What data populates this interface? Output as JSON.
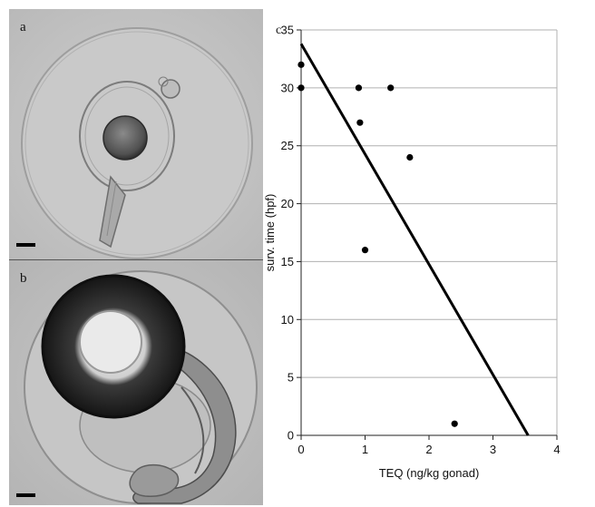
{
  "panels": {
    "a": {
      "letter": "a"
    },
    "b": {
      "letter": "b"
    },
    "c": {
      "letter": "c"
    }
  },
  "chart_data": {
    "type": "scatter",
    "xlabel": "TEQ (ng/kg gonad)",
    "ylabel": "surv. time (hpf)",
    "xlim": [
      0,
      4
    ],
    "ylim": [
      0,
      35
    ],
    "xticks": [
      0,
      1,
      2,
      3,
      4
    ],
    "yticks": [
      0,
      5,
      10,
      15,
      20,
      25,
      30,
      35
    ],
    "grid": "horizontal",
    "points": [
      {
        "x": 0.0,
        "y": 32
      },
      {
        "x": 0.0,
        "y": 30
      },
      {
        "x": 0.9,
        "y": 30
      },
      {
        "x": 1.4,
        "y": 30
      },
      {
        "x": 0.92,
        "y": 27
      },
      {
        "x": 1.7,
        "y": 24
      },
      {
        "x": 1.0,
        "y": 16
      },
      {
        "x": 2.4,
        "y": 1
      }
    ],
    "trendline": {
      "x": [
        0,
        3.55
      ],
      "y": [
        33.8,
        0
      ]
    }
  }
}
